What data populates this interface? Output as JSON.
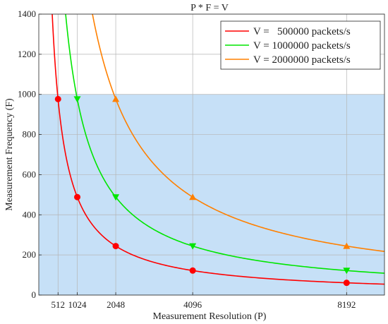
{
  "chart_data": {
    "type": "line",
    "title": "P * F = V",
    "xlabel": "Measurement Resolution (P)",
    "ylabel": "Measurement Frequency (F)",
    "xlim": [
      0,
      9200
    ],
    "ylim": [
      0,
      1400
    ],
    "xticks": [
      512,
      1024,
      2048,
      4096,
      8192
    ],
    "xtick_labels": [
      "512",
      "1024",
      "2048",
      "4096",
      "8192"
    ],
    "yticks": [
      0,
      200,
      400,
      600,
      800,
      1000,
      1200,
      1400
    ],
    "ytick_labels": [
      "0",
      "200",
      "400",
      "600",
      "800",
      "1000",
      "1200",
      "1400"
    ],
    "grid": true,
    "legend_position": "top-right",
    "shaded_region": {
      "x": [
        0,
        9200
      ],
      "y": [
        0,
        1000
      ],
      "color": "#c6e0f7"
    },
    "series": [
      {
        "name": "V =   500000 packets/s",
        "V": 500000,
        "color": "#ff0000",
        "marker": "circle",
        "points": [
          {
            "x": 512,
            "y": 976.56
          },
          {
            "x": 1024,
            "y": 488.28
          },
          {
            "x": 2048,
            "y": 244.14
          },
          {
            "x": 4096,
            "y": 122.07
          },
          {
            "x": 8192,
            "y": 61.04
          }
        ]
      },
      {
        "name": "V = 1000000 packets/s",
        "V": 1000000,
        "color": "#00e600",
        "marker": "triangle-down",
        "points": [
          {
            "x": 1024,
            "y": 976.56
          },
          {
            "x": 2048,
            "y": 488.28
          },
          {
            "x": 4096,
            "y": 244.14
          },
          {
            "x": 8192,
            "y": 122.07
          }
        ]
      },
      {
        "name": "V = 2000000 packets/s",
        "V": 2000000,
        "color": "#ff8000",
        "marker": "triangle-up",
        "points": [
          {
            "x": 2048,
            "y": 976.56
          },
          {
            "x": 4096,
            "y": 488.28
          },
          {
            "x": 8192,
            "y": 244.14
          }
        ]
      }
    ]
  }
}
